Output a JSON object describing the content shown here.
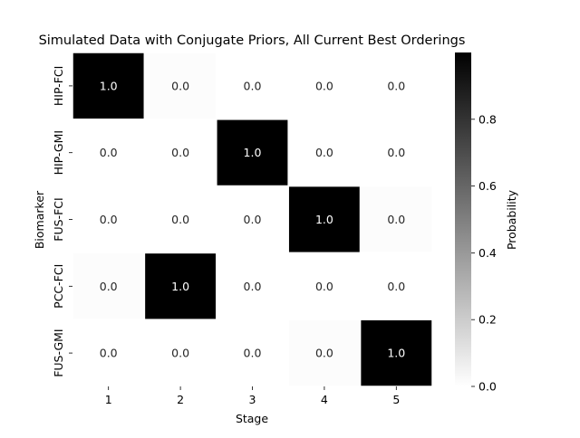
{
  "chart_data": {
    "type": "heatmap",
    "title": "Simulated Data with Conjugate Priors, All Current Best Orderings",
    "xlabel": "Stage",
    "ylabel": "Biomarker",
    "x_tick_labels": [
      "1",
      "2",
      "3",
      "4",
      "5"
    ],
    "y_tick_labels": [
      "HIP-FCI",
      "HIP-GMI",
      "FUS-FCI",
      "PCC-FCI",
      "FUS-GMI"
    ],
    "values": [
      [
        1.0,
        0.01,
        0.0,
        0.0,
        0.0
      ],
      [
        0.0,
        0.0,
        1.0,
        0.0,
        0.0
      ],
      [
        0.0,
        0.0,
        0.0,
        1.0,
        0.01
      ],
      [
        0.01,
        1.0,
        0.0,
        0.0,
        0.0
      ],
      [
        0.0,
        0.0,
        0.0,
        0.01,
        1.0
      ]
    ],
    "cell_labels": [
      [
        "1.0",
        "0.0",
        "0.0",
        "0.0",
        "0.0"
      ],
      [
        "0.0",
        "0.0",
        "1.0",
        "0.0",
        "0.0"
      ],
      [
        "0.0",
        "0.0",
        "0.0",
        "1.0",
        "0.0"
      ],
      [
        "0.0",
        "1.0",
        "0.0",
        "0.0",
        "0.0"
      ],
      [
        "0.0",
        "0.0",
        "0.0",
        "0.0",
        "1.0"
      ]
    ],
    "colormap": "Greys",
    "color_low": "#ffffff",
    "color_high": "#000000",
    "vmin": 0.0,
    "vmax": 1.0,
    "colorbar": {
      "label": "Probability",
      "ticks": [
        0.0,
        0.2,
        0.4,
        0.6,
        0.8
      ],
      "tick_labels": [
        "0.0",
        "0.2",
        "0.4",
        "0.6",
        "0.8"
      ]
    },
    "grid": false
  }
}
